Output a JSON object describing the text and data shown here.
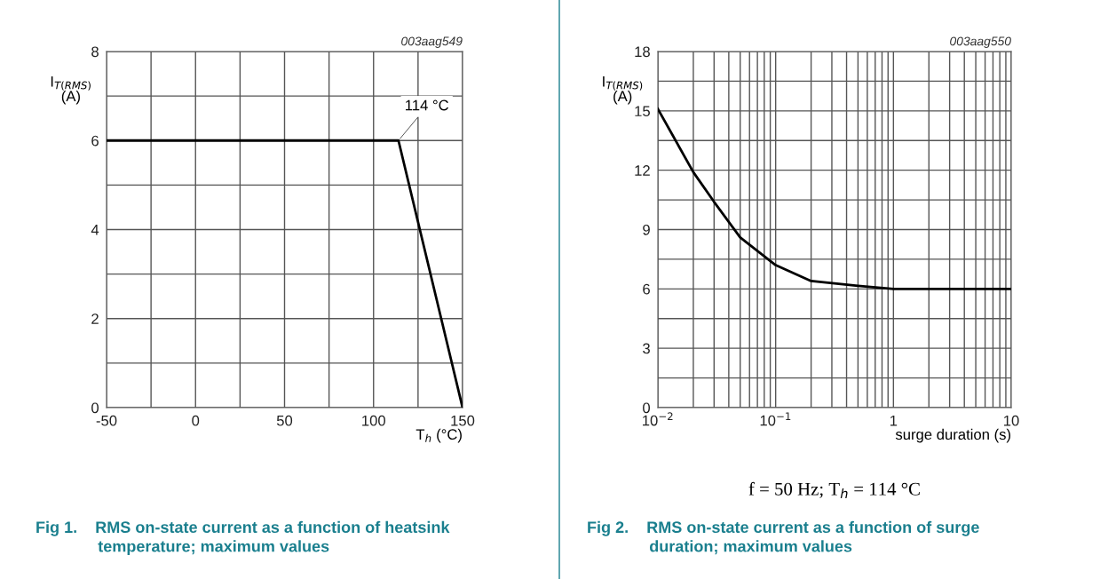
{
  "chart_data": [
    {
      "type": "line",
      "title": "Fig 1.    RMS on-state current as a function of heatsink\n              temperature; maximum values",
      "xlabel": "T$_{h}$ (°C)",
      "ylabel": "I$_{T(RMS)}$\n(A)",
      "series": [
        {
          "color": "#000000",
          "x": [
            -50,
            114,
            150
          ],
          "values": [
            6,
            6,
            0
          ]
        }
      ],
      "xlim": [
        -50,
        150
      ],
      "xticks": [
        -50,
        {
          "value": -25,
          "label": null
        },
        0,
        {
          "value": 25,
          "label": null
        },
        50,
        {
          "value": 75,
          "label": null
        },
        100,
        {
          "value": 125,
          "label": null
        },
        150
      ],
      "ylim": [
        0,
        8
      ],
      "yticks": [
        0,
        {
          "value": 1,
          "label": null
        },
        2,
        {
          "value": 3,
          "label": null
        },
        4,
        {
          "value": 5,
          "label": null
        },
        6,
        {
          "value": 7,
          "label": null
        },
        8
      ],
      "grid": true,
      "annotations": [
        "003aag549",
        {
          "text": "114 °C",
          "x": 114,
          "y": 6
        }
      ]
    },
    {
      "type": "line",
      "title": "Fig 2.    RMS on-state current as a function of surge\n              duration; maximum values",
      "xlabel": "surge duration (s)",
      "ylabel": "I$_{T(RMS)}$\n(A)",
      "log": "x",
      "series": [
        {
          "color": "#000000",
          "x": [
            0.01,
            0.02,
            0.03,
            0.05,
            0.1,
            0.2,
            0.5,
            1,
            10
          ],
          "values": [
            15.1,
            11.9,
            10.4,
            8.6,
            7.2,
            6.4,
            6.15,
            6.0,
            6.0
          ]
        }
      ],
      "xlim": [
        0.01,
        10
      ],
      "xticks": [
        {
          "value": 0.01,
          "label": "10$^{−2}$"
        },
        {
          "value": 0.02,
          "label": null
        },
        {
          "value": 0.03,
          "label": null
        },
        {
          "value": 0.04,
          "label": null
        },
        {
          "value": 0.05,
          "label": null
        },
        {
          "value": 0.06,
          "label": null
        },
        {
          "value": 0.07,
          "label": null
        },
        {
          "value": 0.08,
          "label": null
        },
        {
          "value": 0.09,
          "label": null
        },
        {
          "value": 0.1,
          "label": "10$^{−1}$"
        },
        {
          "value": 0.2,
          "label": null
        },
        {
          "value": 0.3,
          "label": null
        },
        {
          "value": 0.4,
          "label": null
        },
        {
          "value": 0.5,
          "label": null
        },
        {
          "value": 0.6,
          "label": null
        },
        {
          "value": 0.7,
          "label": null
        },
        {
          "value": 0.8,
          "label": null
        },
        {
          "value": 0.9,
          "label": null
        },
        1,
        {
          "value": 2,
          "label": null
        },
        {
          "value": 3,
          "label": null
        },
        {
          "value": 4,
          "label": null
        },
        {
          "value": 5,
          "label": null
        },
        {
          "value": 6,
          "label": null
        },
        {
          "value": 7,
          "label": null
        },
        {
          "value": 8,
          "label": null
        },
        {
          "value": 9,
          "label": null
        },
        10
      ],
      "ylim": [
        0,
        18
      ],
      "yticks": [
        0,
        {
          "value": 1.5,
          "label": null
        },
        3,
        {
          "value": 4.5,
          "label": null
        },
        6,
        {
          "value": 7.5,
          "label": null
        },
        9,
        {
          "value": 10.5,
          "label": null
        },
        12,
        {
          "value": 13.5,
          "label": null
        },
        15,
        {
          "value": 16.5,
          "label": null
        },
        18
      ],
      "grid": true,
      "annotations": [
        "003aag550",
        "f = 50 Hz; T$_{h}$ = 114 °C"
      ]
    }
  ]
}
